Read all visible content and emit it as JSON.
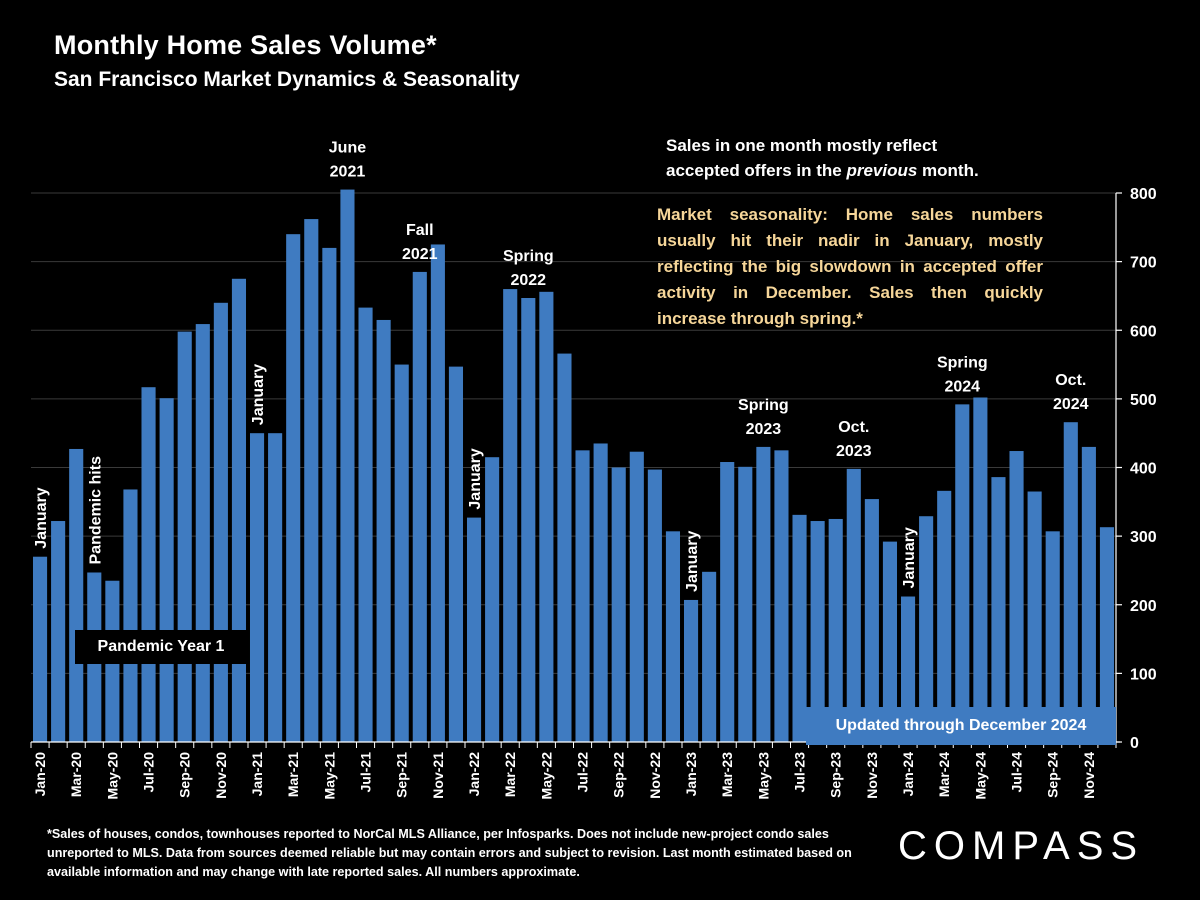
{
  "title": "Monthly Home Sales Volume*",
  "subtitle": "San Francisco Market Dynamics & Seasonality",
  "notes": {
    "offers": [
      "Sales in one month mostly reflect",
      "accepted offers in the ",
      "previous",
      " month."
    ],
    "seasonality": "Market seasonality: Home sales numbers usually hit their nadir in January, mostly reflecting the big slowdown in accepted offer activity in December. Sales then quickly increase through spring.*",
    "pandemic_box": "Pandemic Year 1",
    "updated_box": "Updated through December 2024"
  },
  "footnote": "*Sales of houses, condos, townhouses reported to NorCal MLS Alliance, per Infosparks. Does not include new-project condo sales unreported to MLS. Data from sources deemed reliable but may contain errors and subject to revision. Last month estimated based on available information and may change with late reported sales. All numbers approximate.",
  "logo": "COMPASS",
  "colors": {
    "bar": "#3f7bc1",
    "background": "#000000",
    "gold_text": "#f6d699",
    "axis": "#ffffff",
    "grid": "#3a3a3a"
  },
  "chart_data": {
    "type": "bar",
    "title": "Monthly Home Sales Volume*",
    "xlabel": "",
    "ylabel": "",
    "ylim": [
      0,
      800
    ],
    "yticks": [
      0,
      100,
      200,
      300,
      400,
      500,
      600,
      700,
      800
    ],
    "y_axis_side": "right",
    "grid": true,
    "categories": [
      "Jan-20",
      "Feb-20",
      "Mar-20",
      "Apr-20",
      "May-20",
      "Jun-20",
      "Jul-20",
      "Aug-20",
      "Sep-20",
      "Oct-20",
      "Nov-20",
      "Dec-20",
      "Jan-21",
      "Feb-21",
      "Mar-21",
      "Apr-21",
      "May-21",
      "Jun-21",
      "Jul-21",
      "Aug-21",
      "Sep-21",
      "Oct-21",
      "Nov-21",
      "Dec-21",
      "Jan-22",
      "Feb-22",
      "Mar-22",
      "Apr-22",
      "May-22",
      "Jun-22",
      "Jul-22",
      "Aug-22",
      "Sep-22",
      "Oct-22",
      "Nov-22",
      "Dec-22",
      "Jan-23",
      "Feb-23",
      "Mar-23",
      "Apr-23",
      "May-23",
      "Jun-23",
      "Jul-23",
      "Aug-23",
      "Sep-23",
      "Oct-23",
      "Nov-23",
      "Dec-23",
      "Jan-24",
      "Feb-24",
      "Mar-24",
      "Apr-24",
      "May-24",
      "Jun-24",
      "Jul-24",
      "Aug-24",
      "Sep-24",
      "Oct-24",
      "Nov-24",
      "Dec-24"
    ],
    "x_tick_labels_shown": [
      "Jan-20",
      "Mar-20",
      "May-20",
      "Jul-20",
      "Sep-20",
      "Nov-20",
      "Jan-21",
      "Mar-21",
      "May-21",
      "Jul-21",
      "Sep-21",
      "Nov-21",
      "Jan-22",
      "Mar-22",
      "May-22",
      "Jul-22",
      "Sep-22",
      "Nov-22",
      "Jan-23",
      "Mar-23",
      "May-23",
      "Jul-23",
      "Sep-23",
      "Nov-23",
      "Jan-24",
      "Mar-24",
      "May-24",
      "Jul-24",
      "Sep-24",
      "Nov-24"
    ],
    "values": [
      270,
      322,
      427,
      247,
      235,
      368,
      517,
      501,
      598,
      609,
      640,
      675,
      450,
      450,
      740,
      762,
      720,
      805,
      633,
      615,
      550,
      685,
      725,
      547,
      327,
      415,
      660,
      647,
      656,
      566,
      425,
      435,
      400,
      423,
      397,
      307,
      207,
      248,
      408,
      401,
      430,
      425,
      331,
      322,
      325,
      398,
      354,
      292,
      212,
      329,
      366,
      492,
      502,
      386,
      424,
      365,
      307,
      466,
      430,
      313
    ],
    "annotations": [
      {
        "text": "January",
        "index": 0,
        "style": "vertical"
      },
      {
        "text": "Pandemic hits",
        "index": 3,
        "style": "vertical"
      },
      {
        "text": "January",
        "index": 12,
        "style": "vertical"
      },
      {
        "text": "June 2021",
        "index": 17,
        "style": "above"
      },
      {
        "text": "Fall 2021",
        "index": 21,
        "style": "above"
      },
      {
        "text": "January",
        "index": 24,
        "style": "vertical"
      },
      {
        "text": "Spring 2022",
        "index": 27,
        "style": "above"
      },
      {
        "text": "January",
        "index": 36,
        "style": "vertical"
      },
      {
        "text": "Spring 2023",
        "index": 40,
        "style": "above"
      },
      {
        "text": "Oct. 2023",
        "index": 45,
        "style": "above"
      },
      {
        "text": "January",
        "index": 48,
        "style": "vertical"
      },
      {
        "text": "Spring 2024",
        "index": 51,
        "style": "above"
      },
      {
        "text": "Oct. 2024",
        "index": 57,
        "style": "above"
      }
    ]
  }
}
